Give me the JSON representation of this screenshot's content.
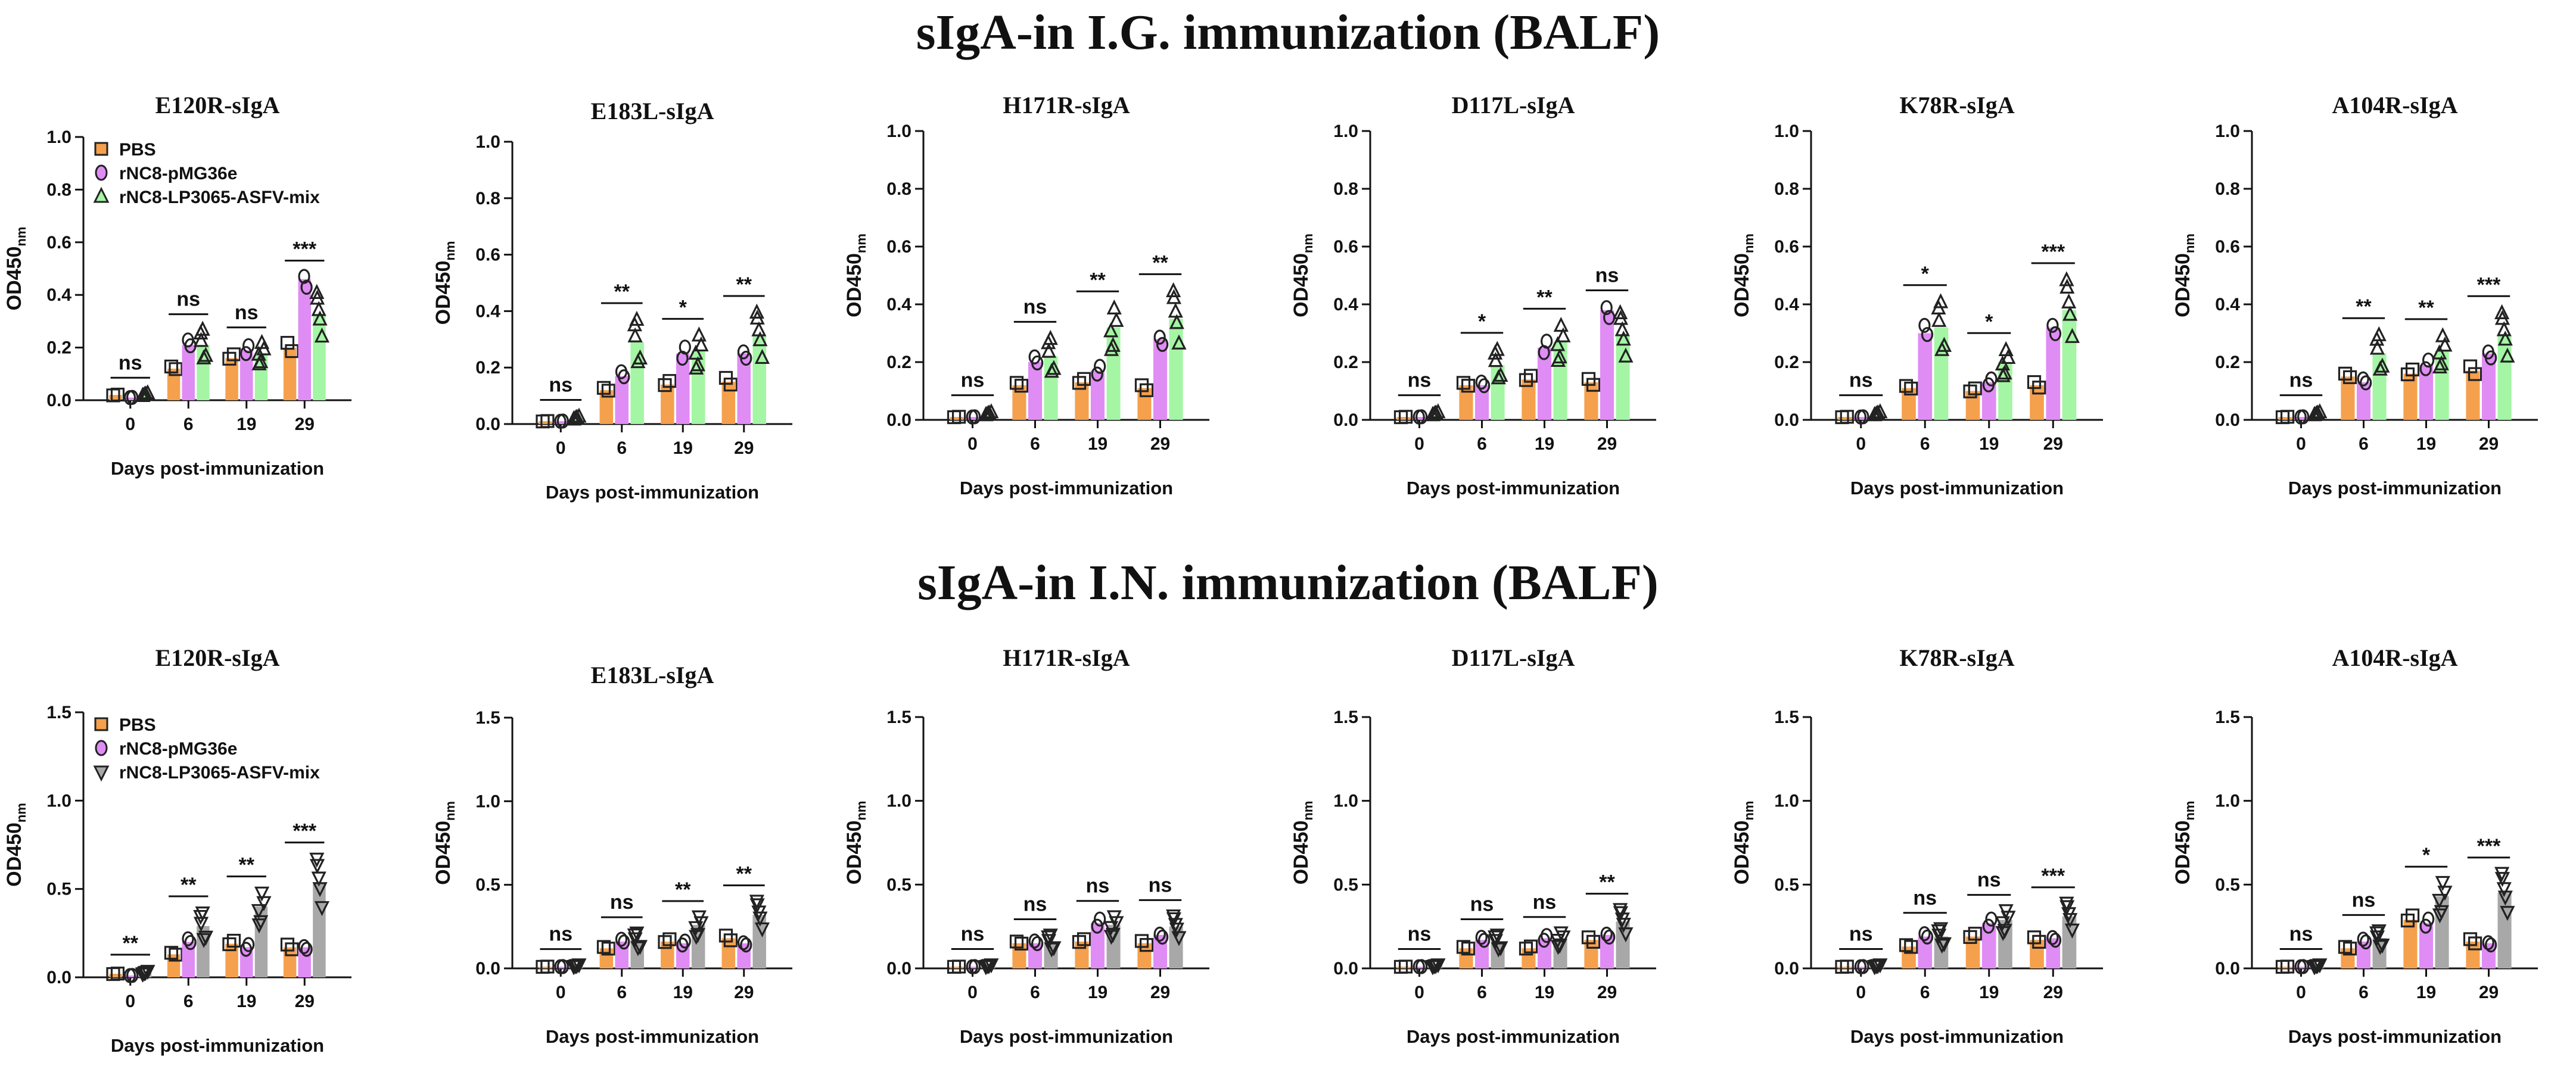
{
  "figure": {
    "title_top": "sIgA-in I.G. immunization (BALF)",
    "title_bottom": "sIgA-in I.N. immunization (BALF)"
  },
  "colors": {
    "pbs": "#f5a04c",
    "pmg": "#e08cf5",
    "mix_ig": "#a4f5a4",
    "mix_in": "#a8a8a8"
  },
  "chart_data": [
    {
      "type": "bar",
      "title": "E120R-sIgA",
      "row": 0,
      "col": 0,
      "xlabel": "Days post-immunization",
      "ylabel": "OD450",
      "ylabel_sub": "nm",
      "categories": [
        "0",
        "6",
        "19",
        "29"
      ],
      "ylim": [
        0,
        1.0
      ],
      "yticks": [
        "0.0",
        "0.2",
        "0.4",
        "0.6",
        "0.8",
        "1.0"
      ],
      "series": [
        {
          "name": "PBS",
          "values": [
            0.02,
            0.12,
            0.16,
            0.2
          ]
        },
        {
          "name": "rNC8-pMG36e",
          "values": [
            0.01,
            0.21,
            0.19,
            0.46
          ]
        },
        {
          "name": "rNC8-LP3065-ASFV-mix",
          "values": [
            0.02,
            0.21,
            0.18,
            0.32
          ]
        }
      ],
      "significance": [
        "ns",
        "ns",
        "ns",
        "***"
      ],
      "legend": [
        "PBS",
        "rNC8-pMG36e",
        "rNC8-LP3065-ASFV-mix"
      ]
    },
    {
      "type": "bar",
      "title": "E183L-sIgA",
      "row": 0,
      "col": 1,
      "xlabel": "Days post-immunization",
      "ylabel": "OD450",
      "ylabel_sub": "nm",
      "categories": [
        "0",
        "6",
        "19",
        "29"
      ],
      "ylim": [
        0,
        1.0
      ],
      "yticks": [
        "0.0",
        "0.2",
        "0.4",
        "0.6",
        "0.8",
        "1.0"
      ],
      "series": [
        {
          "name": "PBS",
          "values": [
            0.01,
            0.12,
            0.14,
            0.15
          ]
        },
        {
          "name": "rNC8-pMG36e",
          "values": [
            0.01,
            0.17,
            0.25,
            0.25
          ]
        },
        {
          "name": "rNC8-LP3065-ASFV-mix",
          "values": [
            0.02,
            0.29,
            0.26,
            0.31
          ]
        }
      ],
      "significance": [
        "ns",
        "**",
        "*",
        "**"
      ]
    },
    {
      "type": "bar",
      "title": "H171R-sIgA",
      "row": 0,
      "col": 2,
      "xlabel": "Days post-immunization",
      "ylabel": "OD450",
      "ylabel_sub": "nm",
      "categories": [
        "0",
        "6",
        "19",
        "29"
      ],
      "ylim": [
        0,
        1.0
      ],
      "yticks": [
        "0.0",
        "0.2",
        "0.4",
        "0.6",
        "0.8",
        "1.0"
      ],
      "series": [
        {
          "name": "PBS",
          "values": [
            0.01,
            0.12,
            0.13,
            0.11
          ]
        },
        {
          "name": "rNC8-pMG36e",
          "values": [
            0.01,
            0.2,
            0.17,
            0.28
          ]
        },
        {
          "name": "rNC8-LP3065-ASFV-mix",
          "values": [
            0.02,
            0.22,
            0.32,
            0.35
          ]
        }
      ],
      "significance": [
        "ns",
        "ns",
        "**",
        "**"
      ]
    },
    {
      "type": "bar",
      "title": "D117L-sIgA",
      "row": 0,
      "col": 3,
      "xlabel": "Days post-immunization",
      "ylabel": "OD450",
      "ylabel_sub": "nm",
      "categories": [
        "0",
        "6",
        "19",
        "29"
      ],
      "ylim": [
        0,
        1.0
      ],
      "yticks": [
        "0.0",
        "0.2",
        "0.4",
        "0.6",
        "0.8",
        "1.0"
      ],
      "series": [
        {
          "name": "PBS",
          "values": [
            0.01,
            0.12,
            0.14,
            0.13
          ]
        },
        {
          "name": "rNC8-pMG36e",
          "values": [
            0.01,
            0.12,
            0.25,
            0.38
          ]
        },
        {
          "name": "rNC8-LP3065-ASFV-mix",
          "values": [
            0.02,
            0.19,
            0.27,
            0.29
          ]
        }
      ],
      "significance": [
        "ns",
        "*",
        "**",
        "ns"
      ]
    },
    {
      "type": "bar",
      "title": "K78R-sIgA",
      "row": 0,
      "col": 4,
      "xlabel": "Days post-immunization",
      "ylabel": "OD450",
      "ylabel_sub": "nm",
      "categories": [
        "0",
        "6",
        "19",
        "29"
      ],
      "ylim": [
        0,
        1.0
      ],
      "yticks": [
        "0.0",
        "0.2",
        "0.4",
        "0.6",
        "0.8",
        "1.0"
      ],
      "series": [
        {
          "name": "PBS",
          "values": [
            0.01,
            0.11,
            0.1,
            0.12
          ]
        },
        {
          "name": "rNC8-pMG36e",
          "values": [
            0.01,
            0.3,
            0.13,
            0.32
          ]
        },
        {
          "name": "rNC8-LP3065-ASFV-mix",
          "values": [
            0.02,
            0.32,
            0.2,
            0.38
          ]
        }
      ],
      "significance": [
        "ns",
        "*",
        "*",
        "***"
      ]
    },
    {
      "type": "bar",
      "title": "A104R-sIgA",
      "row": 0,
      "col": 5,
      "xlabel": "Days post-immunization",
      "ylabel": "OD450",
      "ylabel_sub": "nm",
      "categories": [
        "0",
        "6",
        "19",
        "29"
      ],
      "ylim": [
        0,
        1.0
      ],
      "yticks": [
        "0.0",
        "0.2",
        "0.4",
        "0.6",
        "0.8",
        "1.0"
      ],
      "series": [
        {
          "name": "PBS",
          "values": [
            0.01,
            0.15,
            0.16,
            0.17
          ]
        },
        {
          "name": "rNC8-pMG36e",
          "values": [
            0.01,
            0.13,
            0.19,
            0.23
          ]
        },
        {
          "name": "rNC8-LP3065-ASFV-mix",
          "values": [
            0.02,
            0.23,
            0.24,
            0.29
          ]
        }
      ],
      "significance": [
        "ns",
        "**",
        "**",
        "***"
      ]
    },
    {
      "type": "bar",
      "title": "E120R-sIgA",
      "row": 1,
      "col": 0,
      "xlabel": "Days post-immunization",
      "ylabel": "OD450",
      "ylabel_sub": "nm",
      "categories": [
        "0",
        "6",
        "19",
        "29"
      ],
      "ylim": [
        0,
        1.5
      ],
      "yticks": [
        "0.0",
        "0.5",
        "1.0",
        "1.5"
      ],
      "series": [
        {
          "name": "PBS",
          "values": [
            0.02,
            0.13,
            0.19,
            0.17
          ]
        },
        {
          "name": "rNC8-pMG36e",
          "values": [
            0.01,
            0.2,
            0.17,
            0.17
          ]
        },
        {
          "name": "rNC8-LP3065-ASFV-mix",
          "values": [
            0.03,
            0.29,
            0.4,
            0.53
          ]
        }
      ],
      "significance": [
        "**",
        "**",
        "**",
        "***"
      ],
      "legend": [
        "PBS",
        "rNC8-pMG36e",
        "rNC8-LP3065-ASFV-mix"
      ]
    },
    {
      "type": "bar",
      "title": "E183L-sIgA",
      "row": 1,
      "col": 1,
      "xlabel": "Days post-immunization",
      "ylabel": "OD450",
      "ylabel_sub": "nm",
      "categories": [
        "0",
        "6",
        "19",
        "29"
      ],
      "ylim": [
        0,
        1.5
      ],
      "yticks": [
        "0.0",
        "0.5",
        "1.0",
        "1.5"
      ],
      "series": [
        {
          "name": "PBS",
          "values": [
            0.01,
            0.12,
            0.16,
            0.18
          ]
        },
        {
          "name": "rNC8-pMG36e",
          "values": [
            0.01,
            0.16,
            0.15,
            0.15
          ]
        },
        {
          "name": "rNC8-LP3065-ASFV-mix",
          "values": [
            0.02,
            0.17,
            0.26,
            0.32
          ]
        }
      ],
      "significance": [
        "ns",
        "ns",
        "**",
        "**"
      ]
    },
    {
      "type": "bar",
      "title": "H171R-sIgA",
      "row": 1,
      "col": 2,
      "xlabel": "Days post-immunization",
      "ylabel": "OD450",
      "ylabel_sub": "nm",
      "categories": [
        "0",
        "6",
        "19",
        "29"
      ],
      "ylim": [
        0,
        1.5
      ],
      "yticks": [
        "0.0",
        "0.5",
        "1.0",
        "1.5"
      ],
      "series": [
        {
          "name": "PBS",
          "values": [
            0.01,
            0.15,
            0.16,
            0.15
          ]
        },
        {
          "name": "rNC8-pMG36e",
          "values": [
            0.01,
            0.15,
            0.27,
            0.2
          ]
        },
        {
          "name": "rNC8-LP3065-ASFV-mix",
          "values": [
            0.02,
            0.16,
            0.26,
            0.25
          ]
        }
      ],
      "significance": [
        "ns",
        "ns",
        "ns",
        "ns"
      ]
    },
    {
      "type": "bar",
      "title": "D117L-sIgA",
      "row": 1,
      "col": 3,
      "xlabel": "Days post-immunization",
      "ylabel": "OD450",
      "ylabel_sub": "nm",
      "categories": [
        "0",
        "6",
        "19",
        "29"
      ],
      "ylim": [
        0,
        1.5
      ],
      "yticks": [
        "0.0",
        "0.5",
        "1.0",
        "1.5"
      ],
      "series": [
        {
          "name": "PBS",
          "values": [
            0.01,
            0.12,
            0.12,
            0.17
          ]
        },
        {
          "name": "rNC8-pMG36e",
          "values": [
            0.01,
            0.17,
            0.18,
            0.2
          ]
        },
        {
          "name": "rNC8-LP3065-ASFV-mix",
          "values": [
            0.02,
            0.16,
            0.18,
            0.28
          ]
        }
      ],
      "significance": [
        "ns",
        "ns",
        "ns",
        "**"
      ]
    },
    {
      "type": "bar",
      "title": "K78R-sIgA",
      "row": 1,
      "col": 4,
      "xlabel": "Days post-immunization",
      "ylabel": "OD450",
      "ylabel_sub": "nm",
      "categories": [
        "0",
        "6",
        "19",
        "29"
      ],
      "ylim": [
        0,
        1.5
      ],
      "yticks": [
        "0.0",
        "0.5",
        "1.0",
        "1.5"
      ],
      "series": [
        {
          "name": "PBS",
          "values": [
            0.01,
            0.13,
            0.19,
            0.17
          ]
        },
        {
          "name": "rNC8-pMG36e",
          "values": [
            0.01,
            0.19,
            0.27,
            0.18
          ]
        },
        {
          "name": "rNC8-LP3065-ASFV-mix",
          "values": [
            0.02,
            0.19,
            0.29,
            0.31
          ]
        }
      ],
      "significance": [
        "ns",
        "ns",
        "ns",
        "***"
      ]
    },
    {
      "type": "bar",
      "title": "A104R-sIgA",
      "row": 1,
      "col": 5,
      "xlabel": "Days post-immunization",
      "ylabel": "OD450",
      "ylabel_sub": "nm",
      "categories": [
        "0",
        "6",
        "19",
        "29"
      ],
      "ylim": [
        0,
        1.5
      ],
      "yticks": [
        "0.0",
        "0.5",
        "1.0",
        "1.5"
      ],
      "series": [
        {
          "name": "PBS",
          "values": [
            0.01,
            0.12,
            0.29,
            0.16
          ]
        },
        {
          "name": "rNC8-pMG36e",
          "values": [
            0.01,
            0.16,
            0.27,
            0.15
          ]
        },
        {
          "name": "rNC8-LP3065-ASFV-mix",
          "values": [
            0.02,
            0.18,
            0.43,
            0.45
          ]
        }
      ],
      "significance": [
        "ns",
        "ns",
        "*",
        "***"
      ]
    }
  ]
}
